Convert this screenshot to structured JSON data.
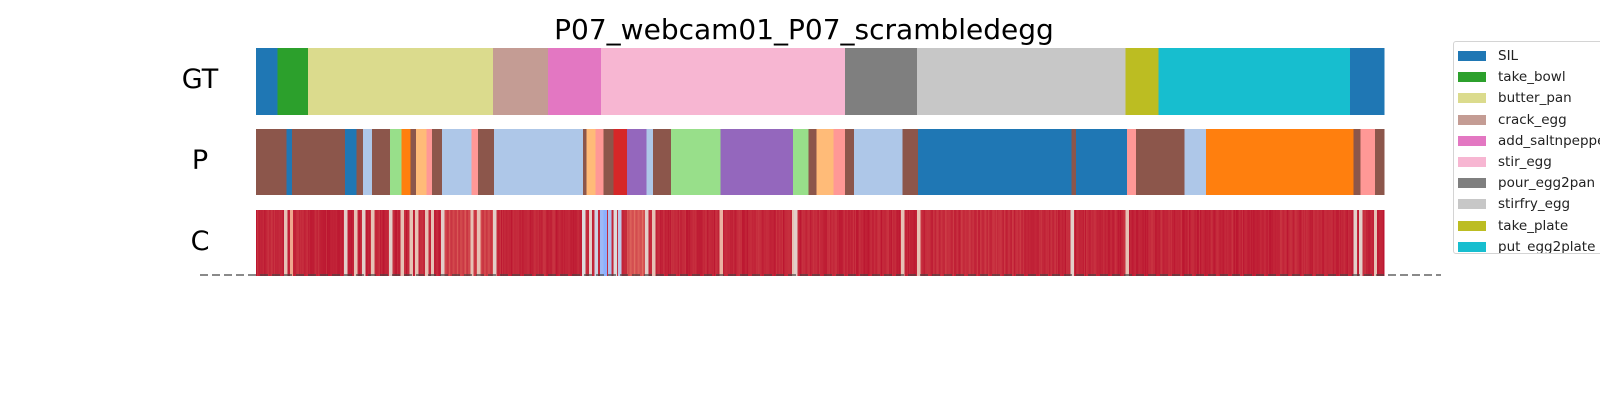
{
  "chart_data": {
    "type": "segmentation",
    "title": "P07_webcam01_P07_scrambledegg",
    "rows": [
      "GT",
      "P",
      "C"
    ],
    "x_range": [
      0,
      1000
    ],
    "classes": [
      {
        "name": "SIL",
        "color": "#1f77b4"
      },
      {
        "name": "take_bowl",
        "color": "#2ca02c"
      },
      {
        "name": "butter_pan",
        "color": "#dbdb8d"
      },
      {
        "name": "crack_egg",
        "color": "#c49c94"
      },
      {
        "name": "add_saltnpepper",
        "color": "#e377c2"
      },
      {
        "name": "stir_egg",
        "color": "#f7b6d2"
      },
      {
        "name": "pour_egg2pan",
        "color": "#7f7f7f"
      },
      {
        "name": "stirfry_egg",
        "color": "#c7c7c7"
      },
      {
        "name": "take_plate",
        "color": "#bcbd22"
      },
      {
        "name": "put_egg2plate",
        "color": "#17becf"
      }
    ],
    "extra_colors": {
      "brown": "#8c564b",
      "light_blue": "#aec7e8",
      "orange": "#ff7f0e",
      "light_orange": "#ffbb78",
      "light_red": "#ff9896",
      "red": "#d62728",
      "purple": "#9467bd",
      "light_green": "#98df8a"
    },
    "gt_segments": [
      {
        "start": 0,
        "end": 19,
        "label": "SIL"
      },
      {
        "start": 19,
        "end": 46,
        "label": "take_bowl"
      },
      {
        "start": 46,
        "end": 210,
        "label": "butter_pan"
      },
      {
        "start": 210,
        "end": 259,
        "label": "crack_egg"
      },
      {
        "start": 259,
        "end": 306,
        "label": "add_saltnpepper"
      },
      {
        "start": 306,
        "end": 522,
        "label": "stir_egg"
      },
      {
        "start": 522,
        "end": 586,
        "label": "pour_egg2pan"
      },
      {
        "start": 586,
        "end": 771,
        "label": "stirfry_egg"
      },
      {
        "start": 771,
        "end": 800,
        "label": "take_plate"
      },
      {
        "start": 800,
        "end": 970,
        "label": "put_egg2plate"
      },
      {
        "start": 970,
        "end": 1000,
        "label": "SIL"
      }
    ],
    "pred_segments": [
      {
        "start": 0,
        "end": 27,
        "color": "#8c564b"
      },
      {
        "start": 27,
        "end": 32,
        "color": "#1f77b4"
      },
      {
        "start": 32,
        "end": 79,
        "color": "#8c564b"
      },
      {
        "start": 79,
        "end": 89,
        "color": "#1f77b4"
      },
      {
        "start": 89,
        "end": 95,
        "color": "#8c564b"
      },
      {
        "start": 95,
        "end": 103,
        "color": "#aec7e8"
      },
      {
        "start": 103,
        "end": 119,
        "color": "#8c564b"
      },
      {
        "start": 119,
        "end": 129,
        "color": "#98df8a"
      },
      {
        "start": 129,
        "end": 137,
        "color": "#ff7f0e"
      },
      {
        "start": 137,
        "end": 142,
        "color": "#8c564b"
      },
      {
        "start": 142,
        "end": 151,
        "color": "#ffbb78"
      },
      {
        "start": 151,
        "end": 156,
        "color": "#ff9896"
      },
      {
        "start": 156,
        "end": 165,
        "color": "#8c564b"
      },
      {
        "start": 165,
        "end": 191,
        "color": "#aec7e8"
      },
      {
        "start": 191,
        "end": 197,
        "color": "#ff9896"
      },
      {
        "start": 197,
        "end": 211,
        "color": "#8c564b"
      },
      {
        "start": 211,
        "end": 290,
        "color": "#aec7e8"
      },
      {
        "start": 290,
        "end": 293,
        "color": "#8c564b"
      },
      {
        "start": 293,
        "end": 301,
        "color": "#ffbb78"
      },
      {
        "start": 301,
        "end": 308,
        "color": "#ff9896"
      },
      {
        "start": 308,
        "end": 317,
        "color": "#8c564b"
      },
      {
        "start": 317,
        "end": 329,
        "color": "#d62728"
      },
      {
        "start": 329,
        "end": 346,
        "color": "#9467bd"
      },
      {
        "start": 346,
        "end": 352,
        "color": "#aec7e8"
      },
      {
        "start": 352,
        "end": 368,
        "color": "#8c564b"
      },
      {
        "start": 368,
        "end": 412,
        "color": "#98df8a"
      },
      {
        "start": 412,
        "end": 476,
        "color": "#9467bd"
      },
      {
        "start": 476,
        "end": 490,
        "color": "#98df8a"
      },
      {
        "start": 490,
        "end": 497,
        "color": "#8c564b"
      },
      {
        "start": 497,
        "end": 512,
        "color": "#ffbb78"
      },
      {
        "start": 512,
        "end": 522,
        "color": "#ff9896"
      },
      {
        "start": 522,
        "end": 530,
        "color": "#8c564b"
      },
      {
        "start": 530,
        "end": 573,
        "color": "#aec7e8"
      },
      {
        "start": 573,
        "end": 587,
        "color": "#8c564b"
      },
      {
        "start": 587,
        "end": 723,
        "color": "#1f77b4"
      },
      {
        "start": 723,
        "end": 727,
        "color": "#8c564b"
      },
      {
        "start": 727,
        "end": 772,
        "color": "#1f77b4"
      },
      {
        "start": 772,
        "end": 780,
        "color": "#ff9896"
      },
      {
        "start": 780,
        "end": 823,
        "color": "#8c564b"
      },
      {
        "start": 823,
        "end": 842,
        "color": "#aec7e8"
      },
      {
        "start": 842,
        "end": 973,
        "color": "#ff7f0e"
      },
      {
        "start": 973,
        "end": 979,
        "color": "#8c564b"
      },
      {
        "start": 979,
        "end": 992,
        "color": "#ff9896"
      },
      {
        "start": 992,
        "end": 1000,
        "color": "#8c564b"
      }
    ],
    "confidence": {
      "colormap": "coolwarm",
      "high_color": "#b40426",
      "mid_color": "#dddcdc",
      "low_color": "#3b4cc0",
      "base": 0.97,
      "dips": [
        {
          "x": 26,
          "w": 1.5,
          "v": 0.6
        },
        {
          "x": 31,
          "w": 1.5,
          "v": 0.7
        },
        {
          "x": 79,
          "w": 1.5,
          "v": 0.55
        },
        {
          "x": 88,
          "w": 1.5,
          "v": 0.6
        },
        {
          "x": 95,
          "w": 1.5,
          "v": 0.55
        },
        {
          "x": 103,
          "w": 1.5,
          "v": 0.6
        },
        {
          "x": 119,
          "w": 1.5,
          "v": 0.55
        },
        {
          "x": 129,
          "w": 1.5,
          "v": 0.6
        },
        {
          "x": 137,
          "w": 1.5,
          "v": 0.6
        },
        {
          "x": 142,
          "w": 1.5,
          "v": 0.6
        },
        {
          "x": 151,
          "w": 1.5,
          "v": 0.6
        },
        {
          "x": 156,
          "w": 1.5,
          "v": 0.6
        },
        {
          "x": 165,
          "w": 1.5,
          "v": 0.55
        },
        {
          "x": 191,
          "w": 1.5,
          "v": 0.6
        },
        {
          "x": 197,
          "w": 1.5,
          "v": 0.6
        },
        {
          "x": 211,
          "w": 1.5,
          "v": 0.55
        },
        {
          "x": 290,
          "w": 1.5,
          "v": 0.5
        },
        {
          "x": 296,
          "w": 1.5,
          "v": 0.55
        },
        {
          "x": 301,
          "w": 1.5,
          "v": 0.45
        },
        {
          "x": 306,
          "w": 2,
          "v": 0.3
        },
        {
          "x": 309,
          "w": 1.5,
          "v": 0.25
        },
        {
          "x": 313,
          "w": 2,
          "v": 0.35
        },
        {
          "x": 318,
          "w": 1.5,
          "v": 0.5
        },
        {
          "x": 322,
          "w": 2,
          "v": 0.4
        },
        {
          "x": 346,
          "w": 1.5,
          "v": 0.55
        },
        {
          "x": 352,
          "w": 1.5,
          "v": 0.6
        },
        {
          "x": 412,
          "w": 1.5,
          "v": 0.65
        },
        {
          "x": 476,
          "w": 1.5,
          "v": 0.6
        },
        {
          "x": 478,
          "w": 1.5,
          "v": 0.55
        },
        {
          "x": 573,
          "w": 1.5,
          "v": 0.6
        },
        {
          "x": 587,
          "w": 1.5,
          "v": 0.6
        },
        {
          "x": 723,
          "w": 1.5,
          "v": 0.55
        },
        {
          "x": 772,
          "w": 1.5,
          "v": 0.6
        },
        {
          "x": 974,
          "w": 1.5,
          "v": 0.55
        },
        {
          "x": 979,
          "w": 1.5,
          "v": 0.55
        },
        {
          "x": 992,
          "w": 1.5,
          "v": 0.6
        }
      ],
      "soft_regions": [
        {
          "start": 165,
          "end": 211,
          "v": 0.86
        },
        {
          "start": 329,
          "end": 346,
          "v": 0.82
        },
        {
          "start": 600,
          "end": 680,
          "v": 0.9
        }
      ]
    }
  }
}
